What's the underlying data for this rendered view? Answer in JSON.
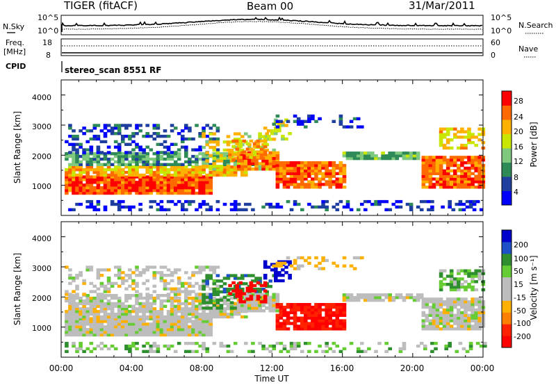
{
  "header": {
    "title": "TIGER (fitACF)",
    "beam": "Beam 00",
    "date": "31/Mar/2011"
  },
  "top_panels": {
    "nsky_label": "N.Sky",
    "nsky_ticks": [
      "10^5",
      "10^0"
    ],
    "nsearch_label": "N.Search",
    "nsearch_ticks": [
      "10^5",
      "10^0"
    ],
    "freq_label": "Freq.",
    "freq_unit": "[MHz]",
    "freq_ticks": [
      "18",
      "8"
    ],
    "nave_label": "Nave",
    "nave_ticks": [
      "60",
      "0"
    ],
    "cpid_label": "CPID",
    "cpid_text": "stereo_scan 8551 RF"
  },
  "colors": {
    "power": [
      "#0000ff",
      "#1f3f9f",
      "#2e8b57",
      "#7fc97f",
      "#c8e600",
      "#ffb000",
      "#ff6a00",
      "#ff0000"
    ],
    "velocity": [
      "#0000cc",
      "#1e50c8",
      "#2f8f2f",
      "#66cc33",
      "#bdbdbd",
      "#bdbdbd",
      "#ffb000",
      "#ff7f00",
      "#ff2200",
      "#ff0000"
    ]
  },
  "chart_data": [
    {
      "type": "heatmap",
      "ylabel": "Slant Range [km]",
      "ylim": [
        0,
        4500
      ],
      "yticks": [
        "4000",
        "3000",
        "2000",
        "1000"
      ],
      "xlabel": "Time UT",
      "xticks": [
        "00:00",
        "04:00",
        "08:00",
        "12:00",
        "16:00",
        "20:00",
        "00:00"
      ],
      "colorbar": {
        "label": "Power [dB]",
        "ticks": [
          "28",
          "24",
          "20",
          "16",
          "12",
          "8",
          "4"
        ]
      }
    },
    {
      "type": "heatmap",
      "ylabel": "Slant Range [km]",
      "ylim": [
        0,
        4500
      ],
      "yticks": [
        "4000",
        "3000",
        "2000",
        "1000"
      ],
      "xlabel": "Time UT",
      "xticks": [
        "00:00",
        "04:00",
        "08:00",
        "12:00",
        "16:00",
        "20:00",
        "00:00"
      ],
      "colorbar": {
        "label": "Velocity [m s⁻¹]",
        "ticks": [
          "200",
          "100",
          "50",
          "15",
          "-15",
          "-50",
          "-100",
          "-200"
        ]
      }
    }
  ]
}
